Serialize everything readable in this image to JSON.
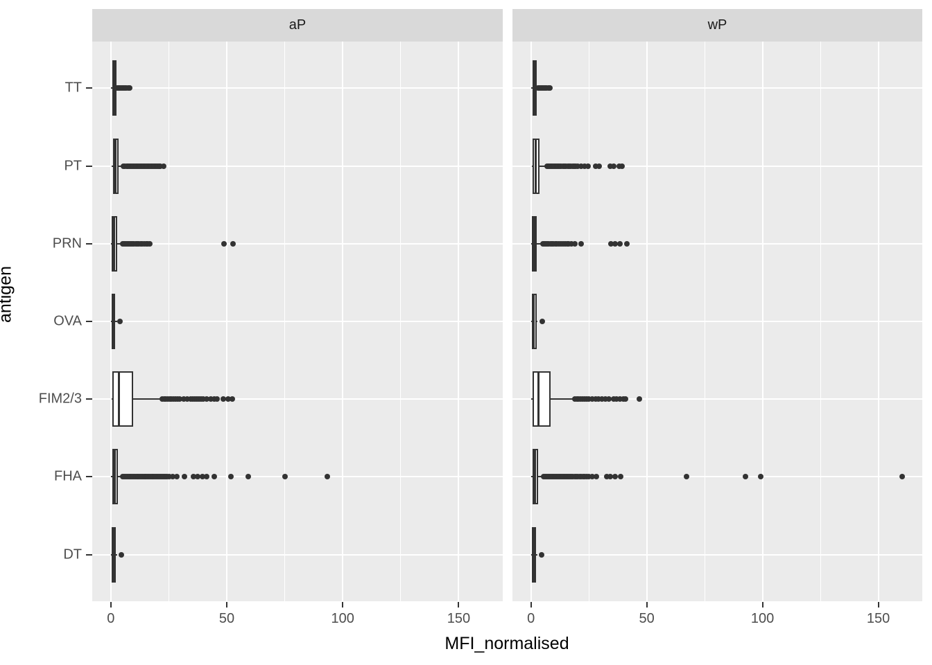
{
  "colors": {
    "panel_background": "#ebebeb",
    "strip_background": "#d9d9d9",
    "gridline": "#ffffff",
    "box_stroke": "#333333",
    "axis_text": "#4d4d4d",
    "title_text": "#000000",
    "figure_background": "#ffffff"
  },
  "chart_data": {
    "type": "boxplot",
    "orientation": "horizontal",
    "xlabel": "MFI_normalised",
    "ylabel": "antigen",
    "x_ticks": [
      0,
      50,
      100,
      150
    ],
    "x_minor_gridlines": [
      25,
      75,
      125
    ],
    "xlim": [
      -8,
      169
    ],
    "categories": [
      "TT",
      "PT",
      "PRN",
      "OVA",
      "FIM2/3",
      "FHA",
      "DT"
    ],
    "legend": "none",
    "grid": "white on grey panel",
    "facets": [
      {
        "label": "aP",
        "rows": [
          {
            "antigen": "TT",
            "whisker_lo": 0.2,
            "q1": 0.6,
            "median": 1.3,
            "q3": 2.4,
            "whisker_hi": 2.9,
            "outliers": [
              2.8,
              3.3,
              3.8,
              4.3,
              4.9,
              5.5,
              6.1,
              6.7,
              7.4,
              8.0
            ]
          },
          {
            "antigen": "PT",
            "whisker_lo": 0.3,
            "q1": 1.0,
            "median": 1.9,
            "q3": 3.5,
            "whisker_hi": 5.3,
            "outliers": [
              5.6,
              6.2,
              6.8,
              7.3,
              7.9,
              8.4,
              9.0,
              9.5,
              10.1,
              10.7,
              11.3,
              11.9,
              12.5,
              13.1,
              13.7,
              14.3,
              14.9,
              15.5,
              16.1,
              16.7,
              17.3,
              17.9,
              18.5,
              19.1,
              19.7,
              20.3,
              20.9,
              21.4,
              22.7
            ]
          },
          {
            "antigen": "PRN",
            "whisker_lo": 0.2,
            "q1": 0.5,
            "median": 1.3,
            "q3": 2.7,
            "whisker_hi": 4.9,
            "outliers": [
              5.2,
              5.8,
              6.4,
              7.0,
              7.6,
              8.2,
              8.8,
              9.4,
              10.0,
              10.7,
              11.4,
              12.1,
              12.8,
              13.6,
              14.4,
              15.2,
              16.0,
              16.8,
              48.8,
              52.6
            ]
          },
          {
            "antigen": "OVA",
            "whisker_lo": 0.2,
            "q1": 0.5,
            "median": 1.1,
            "q3": 2.0,
            "whisker_hi": 2.7,
            "outliers": [
              3.9
            ]
          },
          {
            "antigen": "FIM2/3",
            "whisker_lo": 0.3,
            "q1": 0.7,
            "median": 3.4,
            "q3": 9.7,
            "whisker_hi": 21.9,
            "outliers": [
              22.3,
              23.0,
              23.8,
              24.6,
              25.4,
              26.2,
              27.0,
              27.9,
              28.8,
              29.7,
              31.5,
              33.1,
              34.4,
              35.3,
              36.2,
              37.1,
              38.0,
              38.9,
              39.8,
              41.4,
              43.1,
              44.7,
              45.9,
              48.4,
              50.7,
              52.4
            ]
          },
          {
            "antigen": "FHA",
            "whisker_lo": 0.2,
            "q1": 0.8,
            "median": 1.8,
            "q3": 3.1,
            "whisker_hi": 5.1,
            "outliers": [
              5.3,
              5.8,
              6.3,
              6.9,
              7.4,
              8.0,
              8.5,
              9.1,
              9.6,
              10.2,
              10.7,
              11.3,
              11.8,
              12.4,
              12.9,
              13.5,
              14.0,
              14.6,
              15.1,
              15.7,
              16.2,
              16.8,
              17.3,
              17.9,
              18.4,
              19.0,
              19.5,
              20.1,
              20.6,
              21.2,
              21.8,
              22.4,
              23.0,
              23.7,
              24.4,
              25.1,
              26.6,
              28.4,
              31.8,
              35.6,
              37.3,
              39.4,
              41.3,
              44.5,
              51.7,
              59.2,
              75.2,
              93.5
            ]
          },
          {
            "antigen": "DT",
            "whisker_lo": 0.2,
            "q1": 0.5,
            "median": 1.1,
            "q3": 2.3,
            "whisker_hi": 2.9,
            "outliers": [
              4.5
            ]
          }
        ]
      },
      {
        "label": "wP",
        "rows": [
          {
            "antigen": "TT",
            "whisker_lo": 0.2,
            "q1": 0.6,
            "median": 1.3,
            "q3": 2.6,
            "whisker_hi": 3.0,
            "outliers": [
              3.1,
              3.7,
              4.3,
              4.9,
              5.5,
              6.1,
              6.8,
              7.5,
              8.2
            ]
          },
          {
            "antigen": "PT",
            "whisker_lo": 0.3,
            "q1": 0.8,
            "median": 2.1,
            "q3": 3.7,
            "whisker_hi": 6.7,
            "outliers": [
              7.1,
              7.7,
              8.3,
              8.9,
              9.5,
              10.1,
              10.7,
              11.3,
              11.9,
              12.5,
              13.1,
              13.8,
              14.5,
              15.2,
              15.9,
              16.6,
              17.3,
              18.0,
              18.7,
              19.4,
              20.1,
              21.6,
              23.1,
              24.7,
              27.8,
              29.4,
              34.3,
              35.8,
              38.1,
              39.4
            ]
          },
          {
            "antigen": "PRN",
            "whisker_lo": 0.1,
            "q1": 0.4,
            "median": 1.3,
            "q3": 2.6,
            "whisker_hi": 4.9,
            "outliers": [
              5.2,
              5.8,
              6.4,
              7.0,
              7.7,
              8.4,
              9.1,
              9.8,
              10.5,
              11.3,
              12.1,
              12.9,
              13.8,
              14.7,
              15.6,
              16.4,
              17.4,
              19.0,
              21.5,
              34.6,
              36.4,
              38.3,
              41.4
            ]
          },
          {
            "antigen": "OVA",
            "whisker_lo": 0.2,
            "q1": 0.5,
            "median": 1.2,
            "q3": 2.5,
            "whisker_hi": 2.9,
            "outliers": [
              4.8
            ]
          },
          {
            "antigen": "FIM2/3",
            "whisker_lo": 0.2,
            "q1": 0.6,
            "median": 3.1,
            "q3": 8.6,
            "whisker_hi": 18.5,
            "outliers": [
              19.0,
              19.8,
              20.6,
              21.4,
              22.2,
              23.1,
              24.0,
              25.0,
              26.4,
              27.8,
              29.2,
              30.6,
              32.0,
              33.5,
              35.7,
              37.0,
              38.4,
              39.9,
              40.7,
              46.9
            ]
          },
          {
            "antigen": "FHA",
            "whisker_lo": 0.2,
            "q1": 0.7,
            "median": 1.7,
            "q3": 3.1,
            "whisker_hi": 5.4,
            "outliers": [
              5.6,
              6.2,
              6.8,
              7.4,
              8.0,
              8.6,
              9.2,
              9.8,
              10.4,
              11.0,
              11.6,
              12.2,
              12.8,
              13.4,
              14.0,
              14.6,
              15.2,
              15.8,
              16.4,
              17.0,
              17.6,
              18.2,
              18.9,
              19.6,
              20.3,
              21.0,
              21.7,
              22.4,
              23.2,
              24.0,
              24.9,
              26.4,
              28.3,
              32.6,
              34.1,
              36.4,
              38.6,
              67.2,
              92.5,
              99.2,
              160.4
            ]
          },
          {
            "antigen": "DT",
            "whisker_lo": 0.2,
            "q1": 0.5,
            "median": 1.1,
            "q3": 2.3,
            "whisker_hi": 2.9,
            "outliers": [
              4.6
            ]
          }
        ]
      }
    ]
  }
}
